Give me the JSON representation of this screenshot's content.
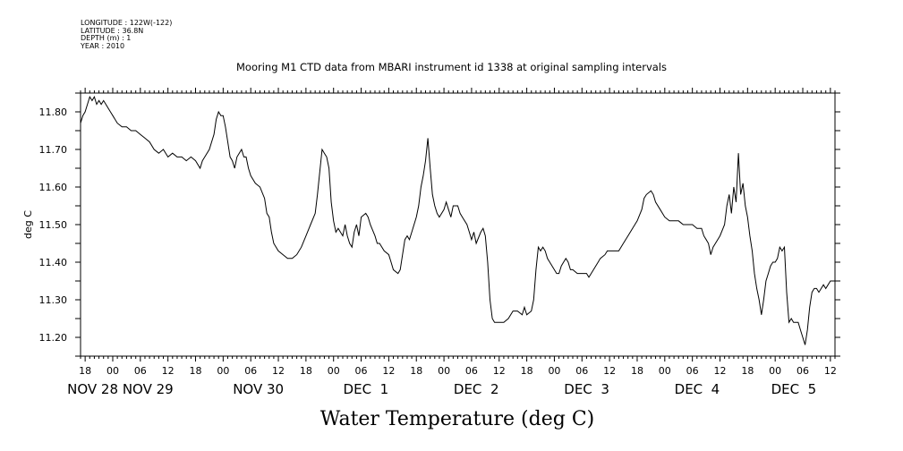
{
  "meta_lines": [
    "LONGITUDE : 122W(-122)",
    "LATITUDE : 36.8N",
    "DEPTH (m) : 1",
    "YEAR : 2010"
  ],
  "chart_data": {
    "type": "line",
    "title": "Mooring M1 CTD data from MBARI instrument id 1338 at original sampling intervals",
    "xlabel": "Water Temperature (deg C)",
    "ylabel": "deg C",
    "x_unit": "hours since Nov 28 00:00 (2010)",
    "xlim": [
      -7,
      157
    ],
    "ylim": [
      11.15,
      11.85
    ],
    "y_ticks": [
      11.2,
      11.3,
      11.4,
      11.5,
      11.6,
      11.7,
      11.8
    ],
    "x_hour_ticks": [
      {
        "hour": -6,
        "label": "18"
      },
      {
        "hour": 0,
        "label": "00"
      },
      {
        "hour": 6,
        "label": "06"
      },
      {
        "hour": 12,
        "label": "12"
      },
      {
        "hour": 18,
        "label": "18"
      },
      {
        "hour": 24,
        "label": "00"
      },
      {
        "hour": 30,
        "label": "06"
      },
      {
        "hour": 36,
        "label": "12"
      },
      {
        "hour": 42,
        "label": "18"
      },
      {
        "hour": 48,
        "label": "00"
      },
      {
        "hour": 54,
        "label": "06"
      },
      {
        "hour": 60,
        "label": "12"
      },
      {
        "hour": 66,
        "label": "18"
      },
      {
        "hour": 72,
        "label": "00"
      },
      {
        "hour": 78,
        "label": "06"
      },
      {
        "hour": 84,
        "label": "12"
      },
      {
        "hour": 90,
        "label": "18"
      },
      {
        "hour": 96,
        "label": "00"
      },
      {
        "hour": 102,
        "label": "06"
      },
      {
        "hour": 108,
        "label": "12"
      },
      {
        "hour": 114,
        "label": "18"
      },
      {
        "hour": 120,
        "label": "00"
      },
      {
        "hour": 126,
        "label": "06"
      },
      {
        "hour": 132,
        "label": "12"
      },
      {
        "hour": 138,
        "label": "18"
      },
      {
        "hour": 144,
        "label": "00"
      },
      {
        "hour": 150,
        "label": "06"
      },
      {
        "hour": 156,
        "label": "12"
      }
    ],
    "date_labels": [
      {
        "hour": -6,
        "label": "NOV 28"
      },
      {
        "hour": 6,
        "label": "NOV 29"
      },
      {
        "hour": 30,
        "label": "NOV 30"
      },
      {
        "hour": 54,
        "label": "DEC  1"
      },
      {
        "hour": 78,
        "label": "DEC  2"
      },
      {
        "hour": 102,
        "label": "DEC  3"
      },
      {
        "hour": 126,
        "label": "DEC  4"
      },
      {
        "hour": 147,
        "label": "DEC  5"
      }
    ],
    "grid": false,
    "series": [
      {
        "color": "#000000",
        "points": [
          [
            -7,
            11.77
          ],
          [
            -6.5,
            11.79
          ],
          [
            -6,
            11.8
          ],
          [
            -5.5,
            11.82
          ],
          [
            -5,
            11.84
          ],
          [
            -4.5,
            11.83
          ],
          [
            -4,
            11.84
          ],
          [
            -3.5,
            11.82
          ],
          [
            -3,
            11.83
          ],
          [
            -2.5,
            11.82
          ],
          [
            -2,
            11.83
          ],
          [
            -1.5,
            11.82
          ],
          [
            -1,
            11.81
          ],
          [
            -0.5,
            11.8
          ],
          [
            0,
            11.79
          ],
          [
            1,
            11.77
          ],
          [
            2,
            11.76
          ],
          [
            3,
            11.76
          ],
          [
            4,
            11.75
          ],
          [
            5,
            11.75
          ],
          [
            6,
            11.74
          ],
          [
            7,
            11.73
          ],
          [
            8,
            11.72
          ],
          [
            9,
            11.7
          ],
          [
            10,
            11.69
          ],
          [
            11,
            11.7
          ],
          [
            12,
            11.68
          ],
          [
            13,
            11.69
          ],
          [
            14,
            11.68
          ],
          [
            15,
            11.68
          ],
          [
            16,
            11.67
          ],
          [
            17,
            11.68
          ],
          [
            18,
            11.67
          ],
          [
            19,
            11.65
          ],
          [
            19.5,
            11.67
          ],
          [
            20,
            11.68
          ],
          [
            21,
            11.7
          ],
          [
            22,
            11.74
          ],
          [
            22.5,
            11.78
          ],
          [
            23,
            11.8
          ],
          [
            23.5,
            11.79
          ],
          [
            24,
            11.79
          ],
          [
            24.5,
            11.76
          ],
          [
            25,
            11.72
          ],
          [
            25.5,
            11.68
          ],
          [
            26,
            11.67
          ],
          [
            26.5,
            11.65
          ],
          [
            27,
            11.68
          ],
          [
            28,
            11.7
          ],
          [
            28.5,
            11.68
          ],
          [
            29,
            11.68
          ],
          [
            29.5,
            11.65
          ],
          [
            30,
            11.63
          ],
          [
            31,
            11.61
          ],
          [
            32,
            11.6
          ],
          [
            33,
            11.57
          ],
          [
            33.5,
            11.53
          ],
          [
            34,
            11.52
          ],
          [
            34.5,
            11.48
          ],
          [
            35,
            11.45
          ],
          [
            36,
            11.43
          ],
          [
            37,
            11.42
          ],
          [
            38,
            11.41
          ],
          [
            39,
            11.41
          ],
          [
            40,
            11.42
          ],
          [
            41,
            11.44
          ],
          [
            42,
            11.47
          ],
          [
            43,
            11.5
          ],
          [
            44,
            11.53
          ],
          [
            44.5,
            11.58
          ],
          [
            45,
            11.64
          ],
          [
            45.5,
            11.7
          ],
          [
            46,
            11.69
          ],
          [
            46.5,
            11.68
          ],
          [
            47,
            11.65
          ],
          [
            47.5,
            11.56
          ],
          [
            48,
            11.51
          ],
          [
            48.5,
            11.48
          ],
          [
            49,
            11.49
          ],
          [
            49.5,
            11.48
          ],
          [
            50,
            11.47
          ],
          [
            50.5,
            11.5
          ],
          [
            51,
            11.47
          ],
          [
            51.5,
            11.45
          ],
          [
            52,
            11.44
          ],
          [
            52.5,
            11.48
          ],
          [
            53,
            11.5
          ],
          [
            53.5,
            11.47
          ],
          [
            54,
            11.52
          ],
          [
            55,
            11.53
          ],
          [
            55.5,
            11.52
          ],
          [
            56,
            11.5
          ],
          [
            57,
            11.47
          ],
          [
            57.5,
            11.45
          ],
          [
            58,
            11.45
          ],
          [
            59,
            11.43
          ],
          [
            60,
            11.42
          ],
          [
            60.5,
            11.4
          ],
          [
            61,
            11.38
          ],
          [
            62,
            11.37
          ],
          [
            62.5,
            11.38
          ],
          [
            63,
            11.42
          ],
          [
            63.5,
            11.46
          ],
          [
            64,
            11.47
          ],
          [
            64.5,
            11.46
          ],
          [
            65,
            11.48
          ],
          [
            66,
            11.52
          ],
          [
            66.5,
            11.55
          ],
          [
            67,
            11.6
          ],
          [
            67.5,
            11.63
          ],
          [
            68,
            11.67
          ],
          [
            68.5,
            11.73
          ],
          [
            69,
            11.65
          ],
          [
            69.5,
            11.58
          ],
          [
            70,
            11.55
          ],
          [
            70.5,
            11.53
          ],
          [
            71,
            11.52
          ],
          [
            72,
            11.54
          ],
          [
            72.5,
            11.56
          ],
          [
            73,
            11.54
          ],
          [
            73.5,
            11.52
          ],
          [
            74,
            11.55
          ],
          [
            75,
            11.55
          ],
          [
            75.5,
            11.53
          ],
          [
            76,
            11.52
          ],
          [
            77,
            11.5
          ],
          [
            77.5,
            11.48
          ],
          [
            78,
            11.46
          ],
          [
            78.5,
            11.48
          ],
          [
            79,
            11.45
          ],
          [
            80,
            11.48
          ],
          [
            80.5,
            11.49
          ],
          [
            81,
            11.47
          ],
          [
            81.5,
            11.4
          ],
          [
            82,
            11.3
          ],
          [
            82.5,
            11.25
          ],
          [
            83,
            11.24
          ],
          [
            84,
            11.24
          ],
          [
            85,
            11.24
          ],
          [
            86,
            11.25
          ],
          [
            87,
            11.27
          ],
          [
            88,
            11.27
          ],
          [
            89,
            11.26
          ],
          [
            89.5,
            11.28
          ],
          [
            90,
            11.26
          ],
          [
            91,
            11.27
          ],
          [
            91.5,
            11.3
          ],
          [
            92,
            11.38
          ],
          [
            92.5,
            11.44
          ],
          [
            93,
            11.43
          ],
          [
            93.5,
            11.44
          ],
          [
            94,
            11.43
          ],
          [
            94.5,
            11.41
          ],
          [
            95,
            11.4
          ],
          [
            96,
            11.38
          ],
          [
            96.5,
            11.37
          ],
          [
            97,
            11.37
          ],
          [
            97.5,
            11.39
          ],
          [
            98,
            11.4
          ],
          [
            98.5,
            11.41
          ],
          [
            99,
            11.4
          ],
          [
            99.5,
            11.38
          ],
          [
            100,
            11.38
          ],
          [
            101,
            11.37
          ],
          [
            102,
            11.37
          ],
          [
            103,
            11.37
          ],
          [
            103.5,
            11.36
          ],
          [
            104,
            11.37
          ],
          [
            105,
            11.39
          ],
          [
            105.5,
            11.4
          ],
          [
            106,
            11.41
          ],
          [
            107,
            11.42
          ],
          [
            107.5,
            11.43
          ],
          [
            108,
            11.43
          ],
          [
            109,
            11.43
          ],
          [
            110,
            11.43
          ],
          [
            111,
            11.45
          ],
          [
            112,
            11.47
          ],
          [
            113,
            11.49
          ],
          [
            114,
            11.51
          ],
          [
            115,
            11.54
          ],
          [
            115.5,
            11.57
          ],
          [
            116,
            11.58
          ],
          [
            117,
            11.59
          ],
          [
            117.5,
            11.58
          ],
          [
            118,
            11.56
          ],
          [
            119,
            11.54
          ],
          [
            120,
            11.52
          ],
          [
            121,
            11.51
          ],
          [
            122,
            11.51
          ],
          [
            123,
            11.51
          ],
          [
            124,
            11.5
          ],
          [
            125,
            11.5
          ],
          [
            126,
            11.5
          ],
          [
            127,
            11.49
          ],
          [
            128,
            11.49
          ],
          [
            128.5,
            11.47
          ],
          [
            129,
            11.46
          ],
          [
            129.5,
            11.45
          ],
          [
            130,
            11.42
          ],
          [
            130.5,
            11.44
          ],
          [
            131,
            11.45
          ],
          [
            132,
            11.47
          ],
          [
            133,
            11.5
          ],
          [
            133.5,
            11.55
          ],
          [
            134,
            11.58
          ],
          [
            134.5,
            11.53
          ],
          [
            135,
            11.6
          ],
          [
            135.5,
            11.56
          ],
          [
            136,
            11.69
          ],
          [
            136.5,
            11.58
          ],
          [
            137,
            11.61
          ],
          [
            137.5,
            11.55
          ],
          [
            138,
            11.52
          ],
          [
            138.5,
            11.47
          ],
          [
            139,
            11.43
          ],
          [
            139.5,
            11.37
          ],
          [
            140,
            11.33
          ],
          [
            140.5,
            11.3
          ],
          [
            141,
            11.26
          ],
          [
            141.5,
            11.3
          ],
          [
            142,
            11.35
          ],
          [
            142.5,
            11.37
          ],
          [
            143,
            11.39
          ],
          [
            143.5,
            11.4
          ],
          [
            144,
            11.4
          ],
          [
            144.5,
            11.41
          ],
          [
            145,
            11.44
          ],
          [
            145.5,
            11.43
          ],
          [
            146,
            11.44
          ],
          [
            146.5,
            11.32
          ],
          [
            147,
            11.24
          ],
          [
            147.5,
            11.25
          ],
          [
            148,
            11.24
          ],
          [
            149,
            11.24
          ],
          [
            149.5,
            11.22
          ],
          [
            150,
            11.2
          ],
          [
            150.5,
            11.18
          ],
          [
            151,
            11.22
          ],
          [
            151.5,
            11.28
          ],
          [
            152,
            11.32
          ],
          [
            152.5,
            11.33
          ],
          [
            153,
            11.33
          ],
          [
            153.5,
            11.32
          ],
          [
            154,
            11.33
          ],
          [
            154.5,
            11.34
          ],
          [
            155,
            11.33
          ],
          [
            155.5,
            11.34
          ],
          [
            156,
            11.35
          ],
          [
            157,
            11.35
          ]
        ]
      }
    ]
  }
}
